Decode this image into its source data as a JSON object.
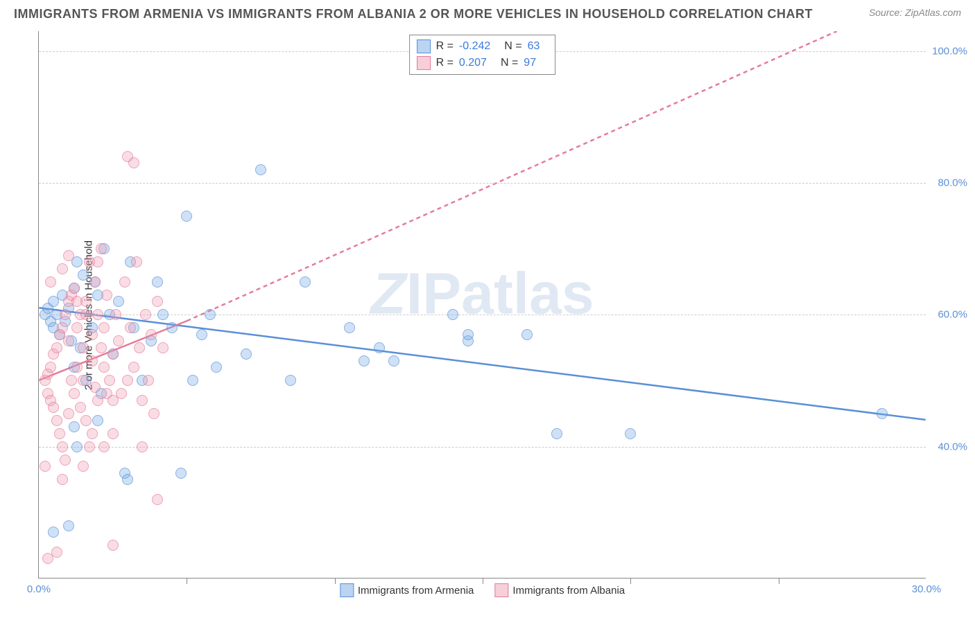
{
  "title": "IMMIGRANTS FROM ARMENIA VS IMMIGRANTS FROM ALBANIA 2 OR MORE VEHICLES IN HOUSEHOLD CORRELATION CHART",
  "source": "Source: ZipAtlas.com",
  "watermark": "ZIPatlas",
  "chart": {
    "type": "scatter",
    "background_color": "#ffffff",
    "grid_color": "#cccccc",
    "xlim": [
      0,
      30
    ],
    "ylim": [
      20,
      103
    ],
    "x_ticks": [
      0,
      5,
      10,
      15,
      20,
      25,
      30
    ],
    "x_tick_labels": {
      "0": "0.0%",
      "30": "30.0%"
    },
    "y_ticks": [
      40,
      60,
      80,
      100
    ],
    "y_tick_labels": {
      "40": "40.0%",
      "60": "60.0%",
      "80": "80.0%",
      "100": "100.0%"
    },
    "ylabel": "2 or more Vehicles in Household",
    "marker_size": 16,
    "series": [
      {
        "name": "Immigrants from Armenia",
        "color_fill": "rgba(120,170,230,0.5)",
        "color_stroke": "#5a8fd6",
        "R": "-0.242",
        "N": "63",
        "trend": {
          "x1": 0,
          "y1": 61,
          "x2": 30,
          "y2": 44,
          "solid": true
        },
        "points": [
          [
            0.2,
            60
          ],
          [
            0.3,
            61
          ],
          [
            0.4,
            59
          ],
          [
            0.5,
            62
          ],
          [
            0.5,
            58
          ],
          [
            0.6,
            60
          ],
          [
            0.7,
            57
          ],
          [
            0.8,
            63
          ],
          [
            0.9,
            59
          ],
          [
            1.0,
            61
          ],
          [
            1.1,
            56
          ],
          [
            1.2,
            64
          ],
          [
            1.2,
            52
          ],
          [
            1.3,
            68
          ],
          [
            1.4,
            55
          ],
          [
            1.5,
            66
          ],
          [
            1.6,
            50
          ],
          [
            1.8,
            58
          ],
          [
            1.9,
            65
          ],
          [
            2.0,
            63
          ],
          [
            2.1,
            48
          ],
          [
            2.2,
            70
          ],
          [
            2.4,
            60
          ],
          [
            2.5,
            54
          ],
          [
            2.7,
            62
          ],
          [
            2.9,
            36
          ],
          [
            3.0,
            35
          ],
          [
            3.1,
            68
          ],
          [
            3.2,
            58
          ],
          [
            3.5,
            50
          ],
          [
            3.8,
            56
          ],
          [
            4.0,
            65
          ],
          [
            4.2,
            60
          ],
          [
            4.5,
            58
          ],
          [
            1.0,
            28
          ],
          [
            1.2,
            43
          ],
          [
            1.3,
            40
          ],
          [
            2.0,
            44
          ],
          [
            0.5,
            27
          ],
          [
            5.0,
            75
          ],
          [
            5.2,
            50
          ],
          [
            5.5,
            57
          ],
          [
            5.8,
            60
          ],
          [
            6.0,
            52
          ],
          [
            7.0,
            54
          ],
          [
            7.5,
            82
          ],
          [
            4.8,
            36
          ],
          [
            8.5,
            50
          ],
          [
            9.0,
            65
          ],
          [
            10.5,
            58
          ],
          [
            11.0,
            53
          ],
          [
            11.5,
            55
          ],
          [
            12.0,
            53
          ],
          [
            14.0,
            60
          ],
          [
            14.5,
            56
          ],
          [
            14.5,
            57
          ],
          [
            16.5,
            57
          ],
          [
            17.5,
            42
          ],
          [
            20.0,
            42
          ],
          [
            28.5,
            45
          ]
        ]
      },
      {
        "name": "Immigrants from Albania",
        "color_fill": "rgba(240,160,180,0.5)",
        "color_stroke": "#e67a9a",
        "R": "0.207",
        "N": "97",
        "trend_solid": {
          "x1": 0,
          "y1": 50,
          "x2": 5,
          "y2": 59
        },
        "trend_dashed": {
          "x1": 5,
          "y1": 59,
          "x2": 27,
          "y2": 103
        },
        "points": [
          [
            0.2,
            50
          ],
          [
            0.3,
            51
          ],
          [
            0.3,
            48
          ],
          [
            0.4,
            52
          ],
          [
            0.4,
            47
          ],
          [
            0.5,
            54
          ],
          [
            0.5,
            46
          ],
          [
            0.6,
            55
          ],
          [
            0.6,
            44
          ],
          [
            0.7,
            57
          ],
          [
            0.7,
            42
          ],
          [
            0.8,
            58
          ],
          [
            0.8,
            40
          ],
          [
            0.9,
            60
          ],
          [
            0.9,
            38
          ],
          [
            1.0,
            62
          ],
          [
            1.0,
            56
          ],
          [
            1.0,
            45
          ],
          [
            1.1,
            63
          ],
          [
            1.1,
            50
          ],
          [
            1.2,
            64
          ],
          [
            1.2,
            48
          ],
          [
            1.3,
            52
          ],
          [
            1.3,
            58
          ],
          [
            1.4,
            60
          ],
          [
            1.4,
            46
          ],
          [
            1.5,
            55
          ],
          [
            1.5,
            50
          ],
          [
            1.6,
            62
          ],
          [
            1.6,
            44
          ],
          [
            1.7,
            68
          ],
          [
            1.7,
            40
          ],
          [
            1.8,
            57
          ],
          [
            1.8,
            53
          ],
          [
            1.9,
            49
          ],
          [
            1.9,
            65
          ],
          [
            2.0,
            60
          ],
          [
            2.0,
            47
          ],
          [
            2.1,
            55
          ],
          [
            2.1,
            70
          ],
          [
            2.2,
            52
          ],
          [
            2.2,
            58
          ],
          [
            2.3,
            48
          ],
          [
            2.3,
            63
          ],
          [
            2.4,
            50
          ],
          [
            2.5,
            54
          ],
          [
            2.5,
            47
          ],
          [
            2.6,
            60
          ],
          [
            2.7,
            56
          ],
          [
            2.8,
            48
          ],
          [
            2.9,
            65
          ],
          [
            3.0,
            84
          ],
          [
            3.0,
            50
          ],
          [
            3.1,
            58
          ],
          [
            3.2,
            83
          ],
          [
            3.2,
            52
          ],
          [
            3.3,
            68
          ],
          [
            3.4,
            55
          ],
          [
            3.5,
            47
          ],
          [
            3.6,
            60
          ],
          [
            3.7,
            50
          ],
          [
            3.8,
            57
          ],
          [
            3.9,
            45
          ],
          [
            4.0,
            62
          ],
          [
            4.0,
            32
          ],
          [
            4.2,
            55
          ],
          [
            0.6,
            24
          ],
          [
            0.3,
            23
          ],
          [
            2.5,
            25
          ],
          [
            0.2,
            37
          ],
          [
            0.8,
            35
          ],
          [
            1.5,
            37
          ],
          [
            1.8,
            42
          ],
          [
            2.2,
            40
          ],
          [
            2.5,
            42
          ],
          [
            3.5,
            40
          ],
          [
            0.4,
            65
          ],
          [
            0.8,
            67
          ],
          [
            1.0,
            69
          ],
          [
            1.3,
            62
          ],
          [
            1.6,
            60
          ],
          [
            2.0,
            68
          ]
        ]
      }
    ],
    "bottom_legend": [
      {
        "swatch": "blue",
        "label": "Immigrants from Armenia"
      },
      {
        "swatch": "pink",
        "label": "Immigrants from Albania"
      }
    ],
    "stats_labels": {
      "R": "R =",
      "N": "N ="
    }
  }
}
